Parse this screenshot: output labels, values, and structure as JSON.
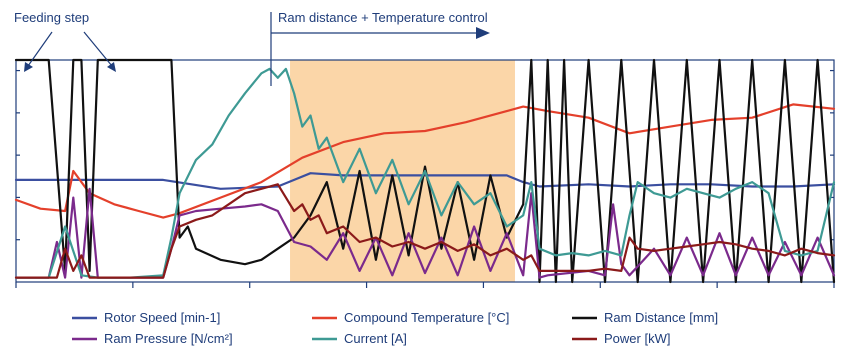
{
  "chart_data": {
    "type": "line",
    "title": "",
    "xlabel": "",
    "ylabel": "",
    "x_range": [
      0,
      100
    ],
    "y_range": [
      0,
      100
    ],
    "grid": false,
    "legend_placement": "bottom",
    "annotations": {
      "feeding_step": "Feeding step",
      "ram_phase": "Ram distance + Temperature control",
      "ram_phase_x_range": [
        33.5,
        61
      ]
    },
    "highlight_color": "#fbd6a8",
    "series": [
      {
        "name": "Rotor Speed [min-1]",
        "color": "#3b4fa0",
        "x": [
          0,
          10,
          18,
          25,
          32,
          34,
          36,
          40,
          45,
          50,
          55,
          60,
          62,
          64,
          70,
          75,
          80,
          85,
          90,
          95,
          100
        ],
        "y": [
          46,
          46,
          46,
          42,
          43,
          46,
          49,
          48,
          48,
          48,
          48,
          48,
          45,
          43,
          44,
          43,
          44,
          44,
          43,
          43,
          44
        ]
      },
      {
        "name": "Compound Temperature [°C]",
        "color": "#e4402b",
        "x": [
          0,
          3,
          6,
          7,
          9,
          12,
          15,
          18,
          20,
          25,
          30,
          35,
          40,
          45,
          50,
          55,
          60,
          62,
          65,
          70,
          75,
          80,
          85,
          90,
          95,
          100
        ],
        "y": [
          37,
          33,
          32,
          50,
          40,
          35,
          32,
          29,
          31,
          38,
          45,
          56,
          63,
          67,
          68,
          72,
          77,
          79,
          77,
          74,
          67,
          70,
          73,
          74,
          80,
          78
        ]
      },
      {
        "name": "Ram Distance [mm]",
        "color": "#111111",
        "x": [
          0,
          2,
          4,
          6,
          7,
          8,
          9,
          10,
          12,
          14,
          16,
          18,
          19,
          20,
          21,
          22,
          25,
          28,
          30,
          32,
          34,
          36,
          38,
          40,
          42,
          44,
          46,
          48,
          50,
          52,
          54,
          56,
          58,
          60,
          62,
          63,
          64,
          65,
          66,
          67,
          68,
          70,
          72,
          74,
          76,
          78,
          80,
          82,
          84,
          86,
          88,
          90,
          92,
          94,
          96,
          98,
          100
        ],
        "y": [
          100,
          100,
          100,
          5,
          100,
          100,
          5,
          100,
          100,
          100,
          100,
          100,
          100,
          20,
          25,
          15,
          10,
          8,
          10,
          15,
          20,
          30,
          45,
          15,
          50,
          10,
          48,
          12,
          52,
          15,
          45,
          10,
          48,
          20,
          35,
          100,
          0,
          100,
          0,
          100,
          0,
          100,
          0,
          100,
          0,
          100,
          0,
          100,
          0,
          100,
          0,
          100,
          0,
          100,
          0,
          100,
          0
        ]
      },
      {
        "name": "Ram Pressure [N/cm²]",
        "color": "#7b2a8c",
        "x": [
          0,
          3,
          4,
          5,
          6,
          7,
          8,
          9,
          10,
          11,
          12,
          14,
          16,
          18,
          19,
          20,
          22,
          25,
          28,
          30,
          32,
          34,
          36,
          38,
          40,
          42,
          44,
          46,
          48,
          50,
          52,
          54,
          56,
          58,
          60,
          62,
          63,
          64,
          65,
          70,
          72,
          73,
          74,
          75,
          78,
          80,
          82,
          84,
          86,
          88,
          90,
          92,
          94,
          96,
          98,
          100
        ],
        "y": [
          2,
          2,
          2,
          18,
          2,
          38,
          2,
          42,
          2,
          2,
          2,
          2,
          2,
          2,
          15,
          30,
          32,
          33,
          34,
          35,
          32,
          18,
          16,
          10,
          22,
          5,
          20,
          3,
          22,
          4,
          20,
          3,
          25,
          5,
          22,
          3,
          40,
          2,
          3,
          5,
          3,
          35,
          8,
          3,
          15,
          3,
          20,
          3,
          22,
          3,
          20,
          3,
          18,
          3,
          20,
          3
        ]
      },
      {
        "name": "Current [A]",
        "color": "#3e9a94",
        "x": [
          0,
          4,
          6,
          8,
          10,
          14,
          18,
          19,
          20,
          22,
          24,
          26,
          28,
          30,
          31,
          32,
          33,
          34,
          35,
          36,
          37,
          38,
          40,
          42,
          44,
          46,
          48,
          50,
          52,
          54,
          56,
          58,
          60,
          62,
          63,
          64,
          66,
          68,
          70,
          72,
          74,
          75,
          76,
          78,
          80,
          82,
          84,
          86,
          88,
          90,
          92,
          94,
          96,
          98,
          100
        ],
        "y": [
          2,
          2,
          25,
          3,
          2,
          2,
          3,
          20,
          40,
          55,
          62,
          75,
          85,
          94,
          96,
          92,
          96,
          85,
          70,
          75,
          60,
          65,
          45,
          60,
          40,
          55,
          35,
          50,
          30,
          45,
          35,
          40,
          25,
          30,
          45,
          15,
          12,
          13,
          12,
          14,
          12,
          30,
          45,
          40,
          38,
          42,
          40,
          38,
          42,
          45,
          40,
          14,
          12,
          14,
          45
        ]
      },
      {
        "name": "Power [kW]",
        "color": "#8b1a1a",
        "x": [
          0,
          3,
          5,
          6,
          7,
          8,
          9,
          10,
          12,
          14,
          16,
          18,
          19,
          20,
          22,
          24,
          26,
          28,
          30,
          32,
          33,
          34,
          35,
          36,
          37,
          38,
          40,
          42,
          44,
          46,
          48,
          50,
          52,
          54,
          56,
          58,
          60,
          62,
          63,
          64,
          66,
          68,
          70,
          72,
          74,
          75,
          76,
          78,
          80,
          82,
          84,
          86,
          88,
          90,
          92,
          94,
          96,
          98,
          100
        ],
        "y": [
          2,
          2,
          2,
          15,
          5,
          12,
          2,
          2,
          2,
          2,
          2,
          2,
          15,
          25,
          28,
          30,
          35,
          40,
          42,
          44,
          38,
          32,
          35,
          28,
          30,
          22,
          25,
          18,
          20,
          16,
          18,
          15,
          18,
          14,
          17,
          12,
          15,
          10,
          12,
          5,
          5,
          5,
          5,
          6,
          5,
          20,
          15,
          14,
          15,
          16,
          17,
          18,
          17,
          15,
          14,
          12,
          15,
          13,
          12
        ]
      }
    ]
  }
}
